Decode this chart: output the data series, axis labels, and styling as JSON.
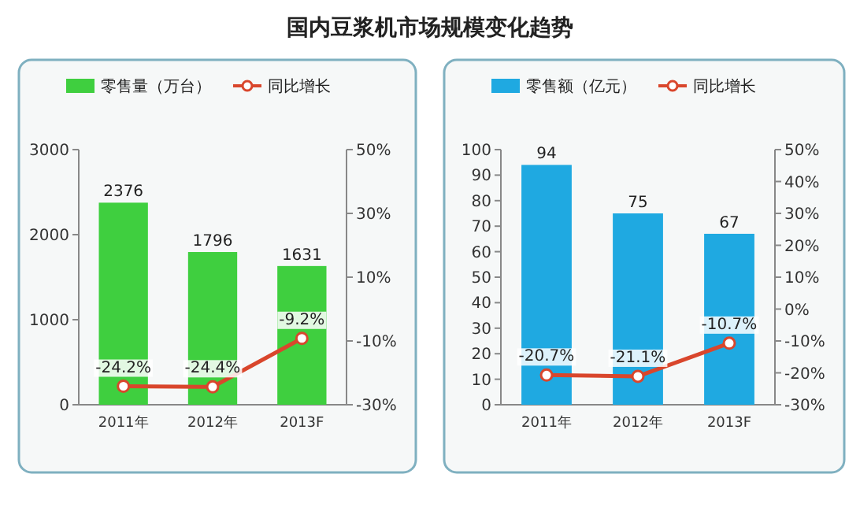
{
  "chart_data": [
    {
      "type": "bar",
      "title": "国内豆浆机市场规模变化趋势",
      "categories": [
        "2011年",
        "2012年",
        "2013F"
      ],
      "legend": "top",
      "series": [
        {
          "name": "零售量（万台）",
          "color": "#3fcf3f",
          "values": [
            2376,
            1796,
            1631
          ],
          "value_labels": [
            "2376",
            "1796",
            "1631"
          ]
        },
        {
          "name": "同比增长",
          "type": "line",
          "axis": "y2",
          "marker": "circle",
          "color": "#d9462c",
          "values": [
            -24.2,
            -24.4,
            -9.2
          ],
          "value_labels": [
            "-24.2%",
            "-24.4%",
            "-9.2%"
          ]
        }
      ],
      "ylim": [
        0,
        3000
      ],
      "yticks": [
        0,
        1000,
        2000,
        3000
      ],
      "y2lim": [
        -30,
        50
      ],
      "y2ticks": [
        {
          "value": -30,
          "label": "-30%"
        },
        {
          "value": -10,
          "label": "-10%"
        },
        {
          "value": 10,
          "label": "10%"
        },
        {
          "value": 30,
          "label": "30%"
        },
        {
          "value": 50,
          "label": "50%"
        }
      ]
    },
    {
      "type": "bar",
      "categories": [
        "2011年",
        "2012年",
        "2013F"
      ],
      "legend": "top",
      "series": [
        {
          "name": "零售额（亿元）",
          "color": "#1fa9e1",
          "values": [
            94,
            75,
            67
          ],
          "value_labels": [
            "94",
            "75",
            "67"
          ]
        },
        {
          "name": "同比增长",
          "type": "line",
          "axis": "y2",
          "marker": "circle",
          "color": "#d9462c",
          "values": [
            -20.7,
            -21.1,
            -10.7
          ],
          "value_labels": [
            "-20.7%",
            "-21.1%",
            "-10.7%"
          ]
        }
      ],
      "ylim": [
        0,
        100
      ],
      "yticks": [
        0,
        10,
        20,
        30,
        40,
        50,
        60,
        70,
        80,
        90,
        100
      ],
      "y2lim": [
        -30,
        50
      ],
      "y2ticks": [
        {
          "value": -30,
          "label": "-30%"
        },
        {
          "value": -20,
          "label": "-20%"
        },
        {
          "value": -10,
          "label": "-10%"
        },
        {
          "value": 0,
          "label": "0%"
        },
        {
          "value": 10,
          "label": "10%"
        },
        {
          "value": 20,
          "label": "20%"
        },
        {
          "value": 30,
          "label": "30%"
        },
        {
          "value": 40,
          "label": "40%"
        },
        {
          "value": 50,
          "label": "50%"
        }
      ]
    }
  ]
}
